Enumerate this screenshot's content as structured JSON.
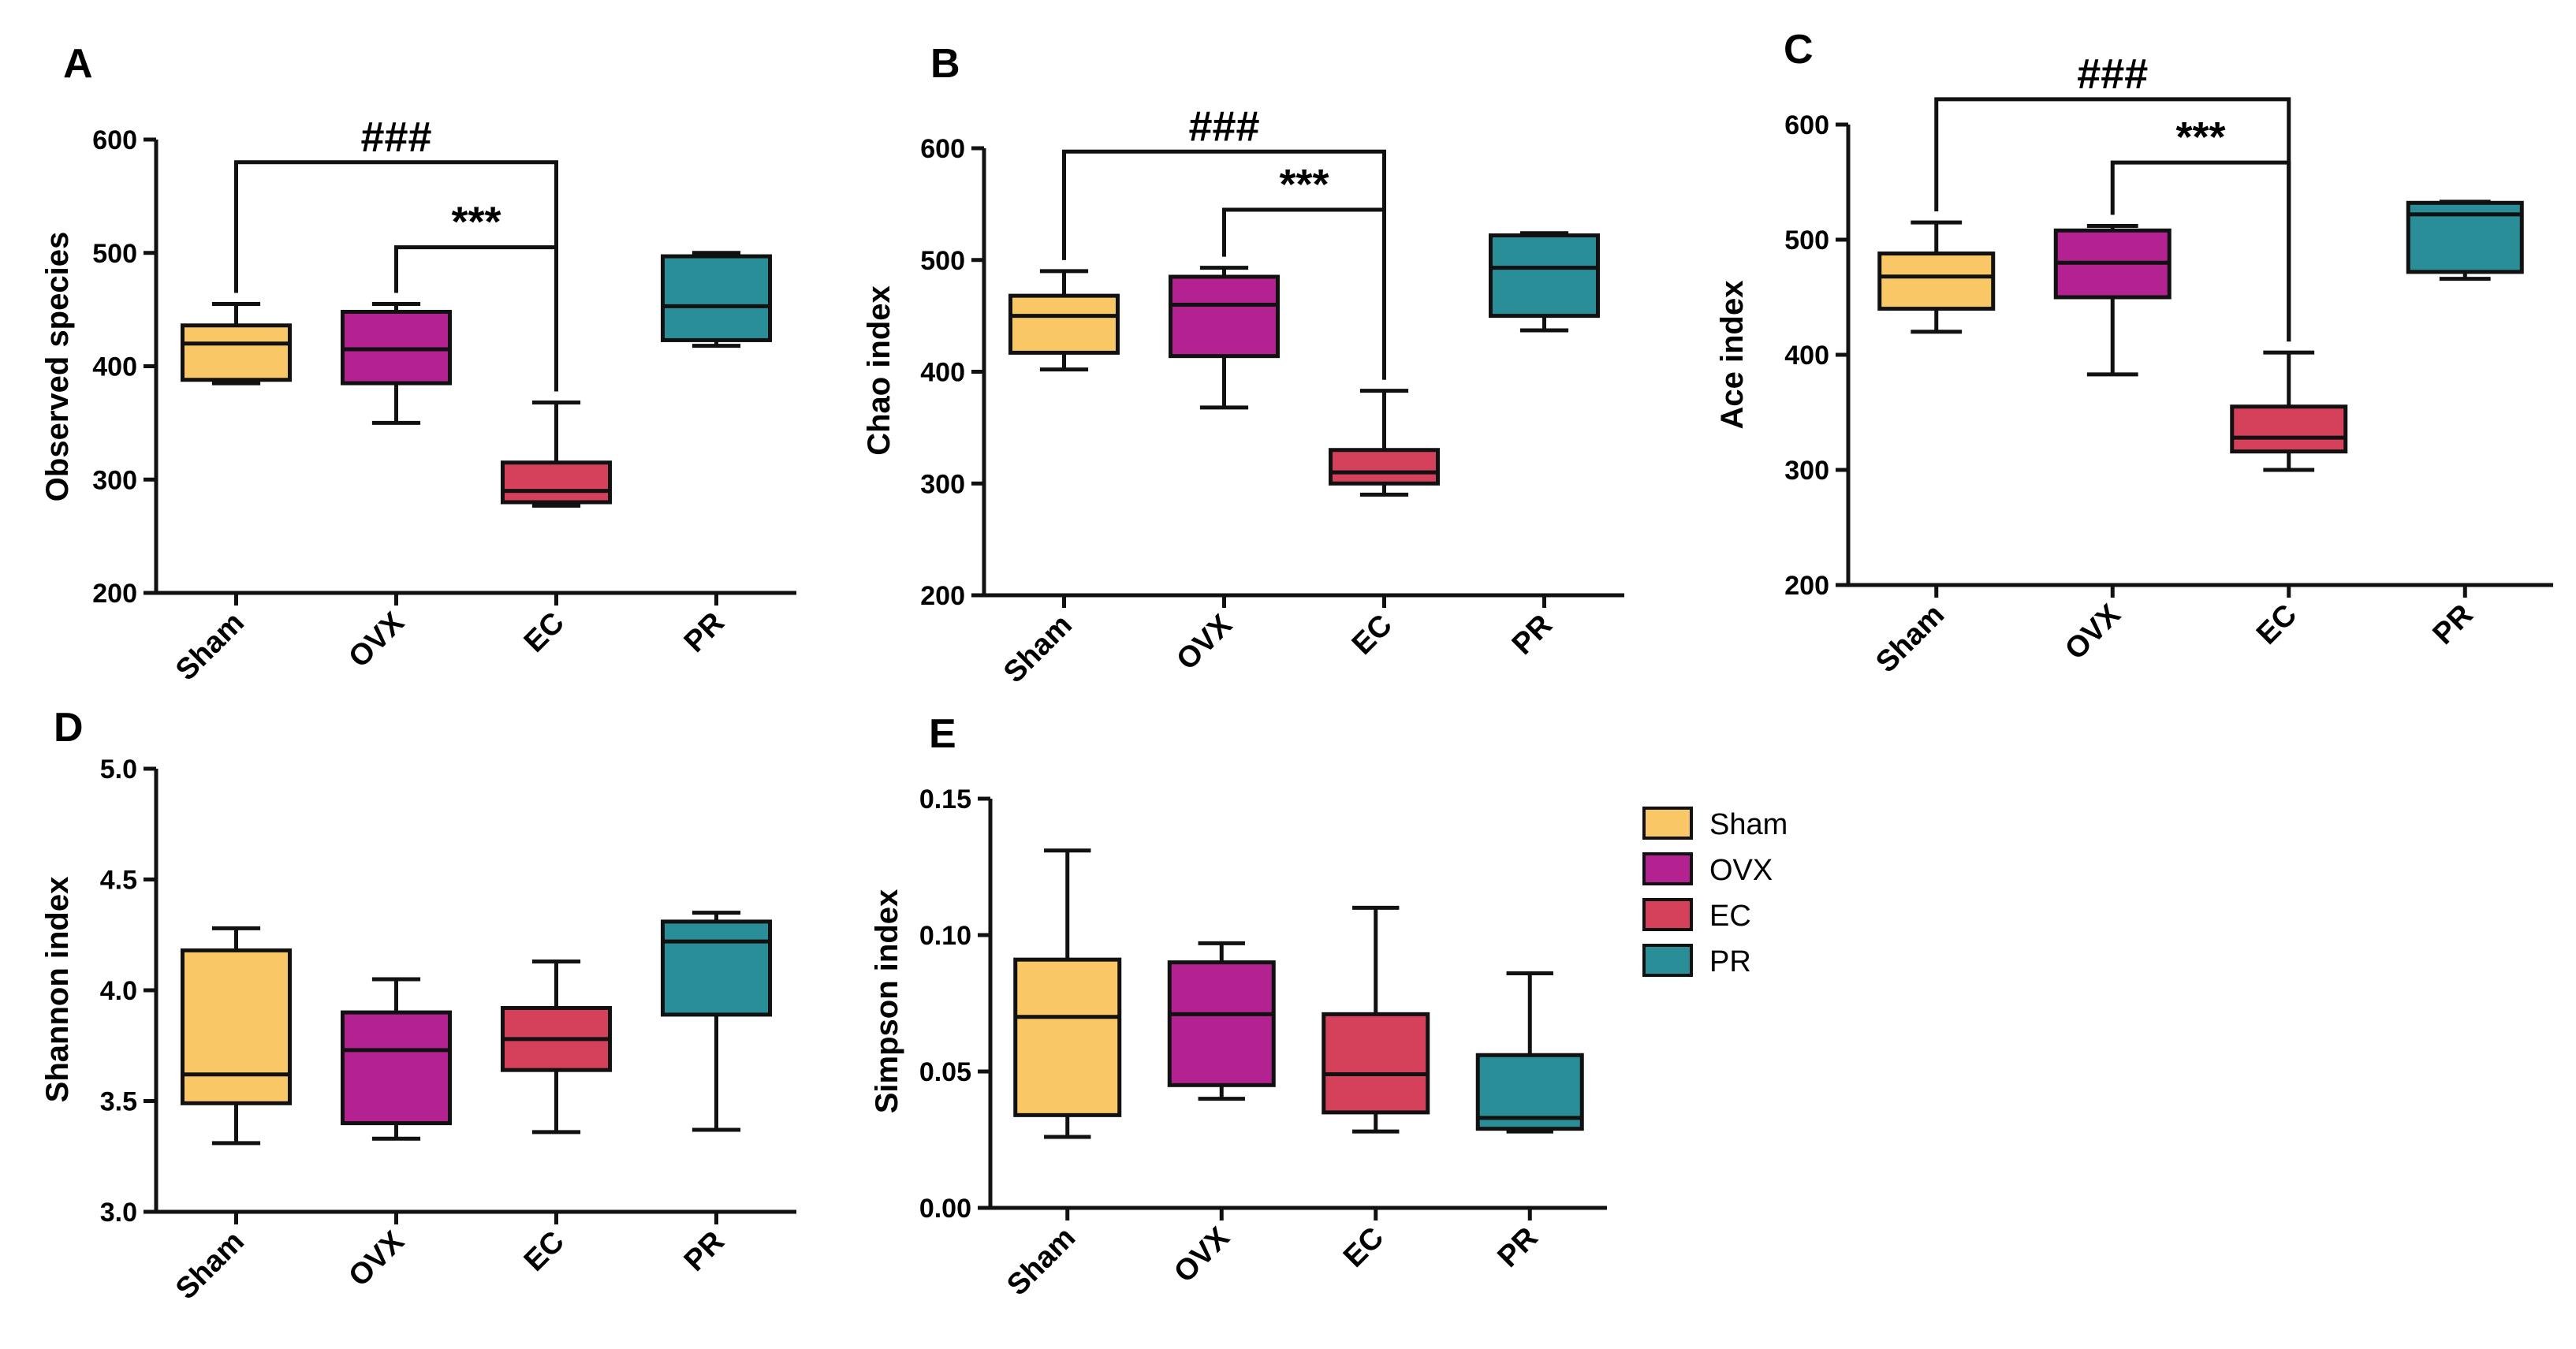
{
  "colors": {
    "Sham": "#f9c765",
    "OVX": "#b42191",
    "EC": "#d5405a",
    "PR": "#2a8e99",
    "ink": "#111111"
  },
  "legend": {
    "items": [
      {
        "label": "Sham",
        "color": "#f9c765"
      },
      {
        "label": "OVX",
        "color": "#b42191"
      },
      {
        "label": "EC",
        "color": "#d5405a"
      },
      {
        "label": "PR",
        "color": "#2a8e99"
      }
    ]
  },
  "chart_data": [
    {
      "panel": "A",
      "type": "box",
      "title": "",
      "xlabel": "",
      "ylabel": "Observed species",
      "categories": [
        "Sham",
        "OVX",
        "EC",
        "PR"
      ],
      "ylim": [
        200,
        600
      ],
      "yticks": [
        200,
        300,
        400,
        500,
        600
      ],
      "tick_decimals": 0,
      "boxes": [
        {
          "min": 385,
          "q1": 388,
          "median": 420,
          "q3": 436,
          "max": 455
        },
        {
          "min": 350,
          "q1": 385,
          "median": 415,
          "q3": 448,
          "max": 455
        },
        {
          "min": 277,
          "q1": 280,
          "median": 290,
          "q3": 315,
          "max": 368
        },
        {
          "min": 418,
          "q1": 423,
          "median": 453,
          "q3": 497,
          "max": 500
        }
      ],
      "significance": [
        {
          "label": "###",
          "from": "Sham",
          "to": "EC",
          "y": 580
        },
        {
          "label": "***",
          "from": "OVX",
          "to": "EC",
          "y": 505
        }
      ]
    },
    {
      "panel": "B",
      "type": "box",
      "title": "",
      "xlabel": "",
      "ylabel": "Chao index",
      "categories": [
        "Sham",
        "OVX",
        "EC",
        "PR"
      ],
      "ylim": [
        200,
        600
      ],
      "yticks": [
        200,
        300,
        400,
        500,
        600
      ],
      "tick_decimals": 0,
      "boxes": [
        {
          "min": 402,
          "q1": 417,
          "median": 450,
          "q3": 468,
          "max": 490
        },
        {
          "min": 368,
          "q1": 414,
          "median": 460,
          "q3": 485,
          "max": 493
        },
        {
          "min": 290,
          "q1": 300,
          "median": 310,
          "q3": 330,
          "max": 383
        },
        {
          "min": 437,
          "q1": 450,
          "median": 493,
          "q3": 522,
          "max": 524
        }
      ],
      "significance": [
        {
          "label": "###",
          "from": "Sham",
          "to": "EC",
          "y": 597
        },
        {
          "label": "***",
          "from": "OVX",
          "to": "EC",
          "y": 545
        }
      ]
    },
    {
      "panel": "C",
      "type": "box",
      "title": "",
      "xlabel": "",
      "ylabel": "Ace index",
      "categories": [
        "Sham",
        "OVX",
        "EC",
        "PR"
      ],
      "ylim": [
        200,
        600
      ],
      "yticks": [
        200,
        300,
        400,
        500,
        600
      ],
      "tick_decimals": 0,
      "boxes": [
        {
          "min": 420,
          "q1": 440,
          "median": 468,
          "q3": 488,
          "max": 515
        },
        {
          "min": 383,
          "q1": 450,
          "median": 480,
          "q3": 508,
          "max": 512
        },
        {
          "min": 300,
          "q1": 316,
          "median": 328,
          "q3": 355,
          "max": 402
        },
        {
          "min": 466,
          "q1": 472,
          "median": 522,
          "q3": 532,
          "max": 533
        }
      ],
      "significance": [
        {
          "label": "###",
          "from": "Sham",
          "to": "EC",
          "y": 622
        },
        {
          "label": "***",
          "from": "OVX",
          "to": "EC",
          "y": 567
        }
      ]
    },
    {
      "panel": "D",
      "type": "box",
      "title": "",
      "xlabel": "",
      "ylabel": "Shannon index",
      "categories": [
        "Sham",
        "OVX",
        "EC",
        "PR"
      ],
      "ylim": [
        3.0,
        5.0
      ],
      "yticks": [
        3.0,
        3.5,
        4.0,
        4.5,
        5.0
      ],
      "tick_decimals": 1,
      "boxes": [
        {
          "min": 3.31,
          "q1": 3.49,
          "median": 3.62,
          "q3": 4.18,
          "max": 4.28
        },
        {
          "min": 3.33,
          "q1": 3.4,
          "median": 3.73,
          "q3": 3.9,
          "max": 4.05
        },
        {
          "min": 3.36,
          "q1": 3.64,
          "median": 3.78,
          "q3": 3.92,
          "max": 4.13
        },
        {
          "min": 3.37,
          "q1": 3.89,
          "median": 4.22,
          "q3": 4.31,
          "max": 4.35
        }
      ],
      "significance": []
    },
    {
      "panel": "E",
      "type": "box",
      "title": "",
      "xlabel": "",
      "ylabel": "Simpson index",
      "categories": [
        "Sham",
        "OVX",
        "EC",
        "PR"
      ],
      "ylim": [
        0.0,
        0.15
      ],
      "yticks": [
        0.0,
        0.05,
        0.1,
        0.15
      ],
      "tick_decimals": 2,
      "boxes": [
        {
          "min": 0.026,
          "q1": 0.034,
          "median": 0.07,
          "q3": 0.091,
          "max": 0.131
        },
        {
          "min": 0.04,
          "q1": 0.045,
          "median": 0.071,
          "q3": 0.09,
          "max": 0.097
        },
        {
          "min": 0.028,
          "q1": 0.035,
          "median": 0.049,
          "q3": 0.071,
          "max": 0.11
        },
        {
          "min": 0.028,
          "q1": 0.029,
          "median": 0.033,
          "q3": 0.056,
          "max": 0.086
        }
      ],
      "significance": []
    }
  ]
}
